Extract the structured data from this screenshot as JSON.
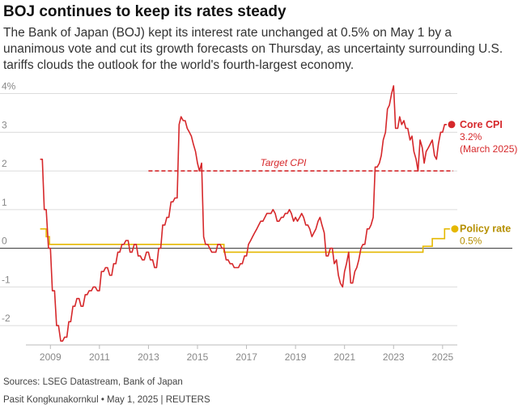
{
  "header": {
    "title": "BOJ continues to keep its rates steady",
    "subtitle": "The Bank of Japan (BOJ) kept its interest rate unchanged at 0.5% on May 1 by a unanimous vote and cut its growth forecasts on Thursday, as uncertainty surrounding U.S. tariffs clouds the outlook for the world's fourth-largest economy."
  },
  "footer": {
    "sources": "Sources: LSEG Datastream, Bank of Japan",
    "credit": "Pasit Kongkunakornkul • May 1, 2025 | REUTERS"
  },
  "colors": {
    "core_cpi": "#d6282b",
    "policy_rate": "#e5b800",
    "zero_line": "#333333",
    "grid": "#dcdcdc"
  },
  "chart_data": {
    "type": "line",
    "title": "BOJ continues to keep its rates steady",
    "xlabel": "",
    "ylabel": "",
    "xlim": [
      2008.0,
      2025.6
    ],
    "ylim": [
      -2.5,
      4.2
    ],
    "x_ticks": [
      2009,
      2011,
      2013,
      2015,
      2017,
      2019,
      2021,
      2023,
      2025
    ],
    "x_tick_labels": [
      "2009",
      "2011",
      "2013",
      "2015",
      "2017",
      "2019",
      "2021",
      "2023",
      "2025"
    ],
    "y_ticks": [
      4,
      3,
      2,
      1,
      0,
      -1,
      -2
    ],
    "y_tick_labels": [
      "4%",
      "3",
      "2",
      "1",
      "0",
      "-1",
      "-2"
    ],
    "grid": true,
    "target_cpi": {
      "value": 2.0,
      "x_start": 2013.0,
      "label": "Target CPI"
    },
    "series": [
      {
        "name": "Core CPI",
        "end_value_label": "3.2%",
        "end_date_label": "(March 2025)",
        "points": [
          [
            2008.58,
            2.3
          ],
          [
            2008.67,
            2.3
          ],
          [
            2008.75,
            1.0
          ],
          [
            2008.83,
            1.0
          ],
          [
            2008.92,
            0.0
          ],
          [
            2009.0,
            0.0
          ],
          [
            2009.08,
            -1.1
          ],
          [
            2009.17,
            -1.1
          ],
          [
            2009.25,
            -2.0
          ],
          [
            2009.33,
            -2.0
          ],
          [
            2009.42,
            -2.4
          ],
          [
            2009.5,
            -2.4
          ],
          [
            2009.58,
            -2.3
          ],
          [
            2009.67,
            -2.3
          ],
          [
            2009.75,
            -1.9
          ],
          [
            2009.83,
            -1.9
          ],
          [
            2009.92,
            -1.5
          ],
          [
            2010.0,
            -1.5
          ],
          [
            2010.08,
            -1.3
          ],
          [
            2010.17,
            -1.3
          ],
          [
            2010.25,
            -1.5
          ],
          [
            2010.33,
            -1.5
          ],
          [
            2010.42,
            -1.2
          ],
          [
            2010.5,
            -1.2
          ],
          [
            2010.58,
            -1.1
          ],
          [
            2010.67,
            -1.1
          ],
          [
            2010.75,
            -1.0
          ],
          [
            2010.83,
            -1.0
          ],
          [
            2010.92,
            -1.1
          ],
          [
            2011.0,
            -1.1
          ],
          [
            2011.08,
            -0.6
          ],
          [
            2011.17,
            -0.6
          ],
          [
            2011.25,
            -0.5
          ],
          [
            2011.33,
            -0.5
          ],
          [
            2011.42,
            -0.7
          ],
          [
            2011.5,
            -0.7
          ],
          [
            2011.58,
            -0.4
          ],
          [
            2011.67,
            -0.4
          ],
          [
            2011.75,
            -0.1
          ],
          [
            2011.83,
            -0.1
          ],
          [
            2011.92,
            0.1
          ],
          [
            2012.0,
            0.1
          ],
          [
            2012.08,
            0.2
          ],
          [
            2012.17,
            0.2
          ],
          [
            2012.25,
            -0.1
          ],
          [
            2012.33,
            -0.1
          ],
          [
            2012.42,
            0.1
          ],
          [
            2012.5,
            0.1
          ],
          [
            2012.58,
            -0.2
          ],
          [
            2012.67,
            -0.2
          ],
          [
            2012.75,
            -0.3
          ],
          [
            2012.83,
            -0.3
          ],
          [
            2012.92,
            -0.1
          ],
          [
            2013.0,
            -0.1
          ],
          [
            2013.08,
            -0.3
          ],
          [
            2013.17,
            -0.3
          ],
          [
            2013.25,
            -0.5
          ],
          [
            2013.33,
            -0.5
          ],
          [
            2013.42,
            0.0
          ],
          [
            2013.5,
            0.0
          ],
          [
            2013.58,
            0.6
          ],
          [
            2013.67,
            0.6
          ],
          [
            2013.75,
            0.8
          ],
          [
            2013.83,
            0.8
          ],
          [
            2013.92,
            1.2
          ],
          [
            2014.0,
            1.2
          ],
          [
            2014.08,
            1.3
          ],
          [
            2014.17,
            1.3
          ],
          [
            2014.25,
            3.2
          ],
          [
            2014.33,
            3.4
          ],
          [
            2014.42,
            3.3
          ],
          [
            2014.5,
            3.3
          ],
          [
            2014.58,
            3.1
          ],
          [
            2014.67,
            3.0
          ],
          [
            2014.75,
            2.9
          ],
          [
            2014.83,
            2.7
          ],
          [
            2014.92,
            2.5
          ],
          [
            2015.0,
            2.2
          ],
          [
            2015.08,
            2.0
          ],
          [
            2015.17,
            2.2
          ],
          [
            2015.25,
            0.3
          ],
          [
            2015.33,
            0.1
          ],
          [
            2015.42,
            0.1
          ],
          [
            2015.5,
            0.0
          ],
          [
            2015.58,
            -0.1
          ],
          [
            2015.67,
            -0.1
          ],
          [
            2015.75,
            -0.1
          ],
          [
            2015.83,
            0.1
          ],
          [
            2015.92,
            0.1
          ],
          [
            2016.0,
            0.0
          ],
          [
            2016.08,
            0.0
          ],
          [
            2016.17,
            -0.3
          ],
          [
            2016.25,
            -0.3
          ],
          [
            2016.33,
            -0.4
          ],
          [
            2016.42,
            -0.4
          ],
          [
            2016.5,
            -0.5
          ],
          [
            2016.58,
            -0.5
          ],
          [
            2016.67,
            -0.5
          ],
          [
            2016.75,
            -0.4
          ],
          [
            2016.83,
            -0.4
          ],
          [
            2016.92,
            -0.2
          ],
          [
            2017.0,
            -0.2
          ],
          [
            2017.08,
            0.1
          ],
          [
            2017.17,
            0.2
          ],
          [
            2017.25,
            0.3
          ],
          [
            2017.33,
            0.4
          ],
          [
            2017.42,
            0.5
          ],
          [
            2017.5,
            0.6
          ],
          [
            2017.58,
            0.7
          ],
          [
            2017.67,
            0.7
          ],
          [
            2017.75,
            0.8
          ],
          [
            2017.83,
            0.9
          ],
          [
            2017.92,
            0.9
          ],
          [
            2018.0,
            0.9
          ],
          [
            2018.08,
            1.0
          ],
          [
            2018.17,
            0.9
          ],
          [
            2018.25,
            0.7
          ],
          [
            2018.33,
            0.7
          ],
          [
            2018.42,
            0.8
          ],
          [
            2018.5,
            0.8
          ],
          [
            2018.58,
            0.9
          ],
          [
            2018.67,
            0.9
          ],
          [
            2018.75,
            1.0
          ],
          [
            2018.83,
            0.9
          ],
          [
            2018.92,
            0.7
          ],
          [
            2019.0,
            0.8
          ],
          [
            2019.08,
            0.7
          ],
          [
            2019.17,
            0.8
          ],
          [
            2019.25,
            0.9
          ],
          [
            2019.33,
            0.8
          ],
          [
            2019.42,
            0.6
          ],
          [
            2019.5,
            0.6
          ],
          [
            2019.58,
            0.5
          ],
          [
            2019.67,
            0.3
          ],
          [
            2019.75,
            0.4
          ],
          [
            2019.83,
            0.5
          ],
          [
            2019.92,
            0.7
          ],
          [
            2020.0,
            0.8
          ],
          [
            2020.08,
            0.6
          ],
          [
            2020.17,
            0.4
          ],
          [
            2020.25,
            -0.2
          ],
          [
            2020.33,
            -0.2
          ],
          [
            2020.42,
            0.0
          ],
          [
            2020.5,
            0.0
          ],
          [
            2020.58,
            -0.4
          ],
          [
            2020.67,
            -0.3
          ],
          [
            2020.75,
            -0.7
          ],
          [
            2020.83,
            -0.9
          ],
          [
            2020.92,
            -1.0
          ],
          [
            2021.0,
            -0.6
          ],
          [
            2021.08,
            -0.4
          ],
          [
            2021.17,
            -0.1
          ],
          [
            2021.25,
            -0.9
          ],
          [
            2021.33,
            -0.9
          ],
          [
            2021.42,
            -0.6
          ],
          [
            2021.5,
            -0.5
          ],
          [
            2021.58,
            -0.3
          ],
          [
            2021.67,
            0.0
          ],
          [
            2021.75,
            0.1
          ],
          [
            2021.83,
            0.1
          ],
          [
            2021.92,
            0.5
          ],
          [
            2022.0,
            0.5
          ],
          [
            2022.08,
            0.6
          ],
          [
            2022.17,
            0.8
          ],
          [
            2022.25,
            2.1
          ],
          [
            2022.33,
            2.1
          ],
          [
            2022.42,
            2.2
          ],
          [
            2022.5,
            2.4
          ],
          [
            2022.58,
            2.8
          ],
          [
            2022.67,
            3.0
          ],
          [
            2022.75,
            3.6
          ],
          [
            2022.83,
            3.7
          ],
          [
            2022.92,
            4.0
          ],
          [
            2023.0,
            4.2
          ],
          [
            2023.08,
            3.1
          ],
          [
            2023.17,
            3.1
          ],
          [
            2023.25,
            3.4
          ],
          [
            2023.33,
            3.2
          ],
          [
            2023.42,
            3.3
          ],
          [
            2023.5,
            3.1
          ],
          [
            2023.58,
            3.1
          ],
          [
            2023.67,
            2.8
          ],
          [
            2023.75,
            2.9
          ],
          [
            2023.83,
            2.5
          ],
          [
            2023.92,
            2.3
          ],
          [
            2024.0,
            2.0
          ],
          [
            2024.08,
            2.8
          ],
          [
            2024.17,
            2.6
          ],
          [
            2024.25,
            2.2
          ],
          [
            2024.33,
            2.5
          ],
          [
            2024.42,
            2.6
          ],
          [
            2024.5,
            2.7
          ],
          [
            2024.58,
            2.8
          ],
          [
            2024.67,
            2.4
          ],
          [
            2024.75,
            2.3
          ],
          [
            2024.83,
            2.7
          ],
          [
            2024.92,
            3.0
          ],
          [
            2025.0,
            3.0
          ],
          [
            2025.08,
            3.2
          ],
          [
            2025.17,
            3.2
          ]
        ]
      },
      {
        "name": "Policy rate",
        "end_value_label": "0.5%",
        "points": [
          [
            2008.58,
            0.5
          ],
          [
            2008.83,
            0.5
          ],
          [
            2008.83,
            0.3
          ],
          [
            2008.96,
            0.3
          ],
          [
            2008.96,
            0.1
          ],
          [
            2016.08,
            0.1
          ],
          [
            2016.08,
            -0.1
          ],
          [
            2024.2,
            -0.1
          ],
          [
            2024.2,
            0.05
          ],
          [
            2024.58,
            0.05
          ],
          [
            2024.58,
            0.25
          ],
          [
            2025.08,
            0.25
          ],
          [
            2025.08,
            0.5
          ],
          [
            2025.3,
            0.5
          ]
        ]
      }
    ]
  }
}
